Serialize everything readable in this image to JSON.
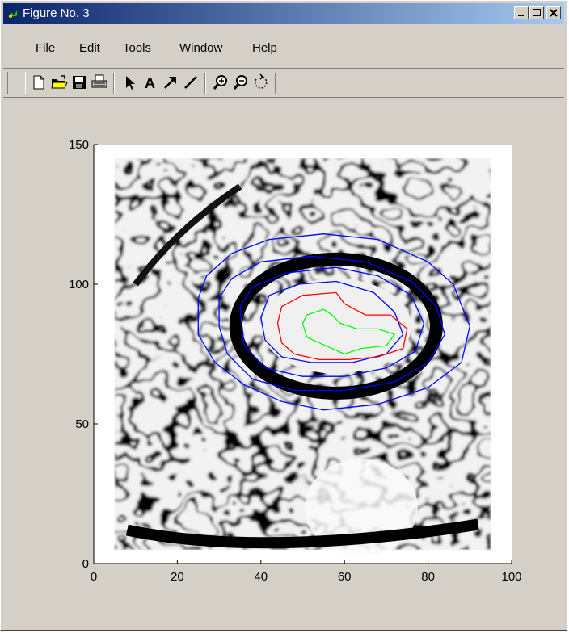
{
  "window": {
    "title": "Figure No. 3"
  },
  "menu": {
    "items": [
      {
        "label": "File"
      },
      {
        "label": "Edit"
      },
      {
        "label": "Tools"
      },
      {
        "label": "Window"
      },
      {
        "label": "Help"
      }
    ]
  },
  "toolbar": {
    "tools": [
      "new-file-icon",
      "open-folder-icon",
      "save-icon",
      "print-icon",
      "pointer-icon",
      "text-icon",
      "arrow-icon",
      "line-icon",
      "zoom-in-icon",
      "zoom-out-icon",
      "rotate-icon"
    ]
  },
  "chart_data": {
    "type": "heatmap",
    "title": "",
    "xlabel": "",
    "ylabel": "",
    "xlim": [
      0,
      100
    ],
    "ylim": [
      0,
      150
    ],
    "xticks": [
      "0",
      "20",
      "40",
      "60",
      "80",
      "100"
    ],
    "yticks": [
      "0",
      "50",
      "100",
      "150"
    ],
    "image_extent": {
      "x": [
        5,
        95
      ],
      "y": [
        5,
        145
      ]
    },
    "colormap": "grayscale",
    "contours": [
      {
        "color": "#0000ff",
        "points": [
          [
            25,
            95
          ],
          [
            27,
            103
          ],
          [
            33,
            111
          ],
          [
            42,
            116
          ],
          [
            55,
            118
          ],
          [
            68,
            116
          ],
          [
            80,
            108
          ],
          [
            86,
            100
          ],
          [
            90,
            85
          ],
          [
            88,
            72
          ],
          [
            80,
            63
          ],
          [
            68,
            57
          ],
          [
            55,
            55
          ],
          [
            45,
            58
          ],
          [
            36,
            64
          ],
          [
            29,
            72
          ],
          [
            25,
            82
          ]
        ]
      },
      {
        "color": "#0000ff",
        "points": [
          [
            30,
            95
          ],
          [
            33,
            102
          ],
          [
            40,
            108
          ],
          [
            52,
            110
          ],
          [
            65,
            108
          ],
          [
            76,
            101
          ],
          [
            82,
            92
          ],
          [
            84,
            82
          ],
          [
            80,
            72
          ],
          [
            72,
            65
          ],
          [
            60,
            62
          ],
          [
            48,
            62
          ],
          [
            38,
            66
          ],
          [
            32,
            75
          ],
          [
            30,
            85
          ]
        ]
      },
      {
        "color": "#0000ff",
        "points": [
          [
            35,
            92
          ],
          [
            38,
            99
          ],
          [
            46,
            104
          ],
          [
            58,
            106
          ],
          [
            68,
            103
          ],
          [
            76,
            96
          ],
          [
            79,
            86
          ],
          [
            77,
            76
          ],
          [
            70,
            70
          ],
          [
            60,
            67
          ],
          [
            50,
            67
          ],
          [
            41,
            70
          ],
          [
            36,
            78
          ]
        ]
      },
      {
        "color": "#0000ff",
        "points": [
          [
            40,
            88
          ],
          [
            42,
            96
          ],
          [
            49,
            100
          ],
          [
            58,
            101
          ],
          [
            67,
            97
          ],
          [
            72,
            90
          ],
          [
            74,
            82
          ],
          [
            70,
            75
          ],
          [
            62,
            72
          ],
          [
            52,
            72
          ],
          [
            45,
            74
          ],
          [
            41,
            80
          ]
        ]
      },
      {
        "color": "#ff0000",
        "points": [
          [
            44,
            86
          ],
          [
            45,
            92
          ],
          [
            50,
            96
          ],
          [
            58,
            97
          ],
          [
            60,
            93
          ],
          [
            65,
            89
          ],
          [
            71,
            89
          ],
          [
            75,
            84
          ],
          [
            74,
            77
          ],
          [
            68,
            74
          ],
          [
            61,
            73
          ],
          [
            54,
            73
          ],
          [
            48,
            75
          ],
          [
            45,
            79
          ]
        ]
      },
      {
        "color": "#00ff00",
        "points": [
          [
            50,
            86
          ],
          [
            51,
            89
          ],
          [
            55,
            91
          ],
          [
            57,
            89
          ],
          [
            59,
            86
          ],
          [
            63,
            84
          ],
          [
            68,
            84
          ],
          [
            72,
            82
          ],
          [
            70,
            78
          ],
          [
            64,
            77
          ],
          [
            60,
            75
          ],
          [
            57,
            77
          ],
          [
            54,
            79
          ],
          [
            51,
            81
          ]
        ]
      }
    ]
  }
}
